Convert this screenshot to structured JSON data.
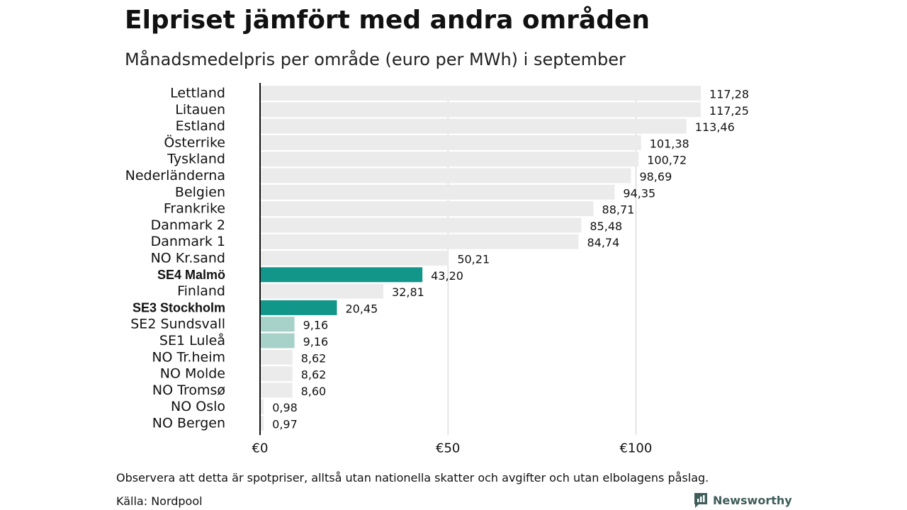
{
  "title": "Elpriset jämfört med andra områden",
  "subtitle": "Månadsmedelpris per område (euro per MWh) i september",
  "chart_data": {
    "type": "bar",
    "orientation": "horizontal",
    "categories": [
      "Lettland",
      "Litauen",
      "Estland",
      "Österrike",
      "Tyskland",
      "Nederländerna",
      "Belgien",
      "Frankrike",
      "Danmark  2",
      "Danmark  1",
      "NO Kr.sand",
      "SE4 Malmö",
      "Finland",
      "SE3 Stockholm",
      "SE2  Sundsvall",
      "SE1  Luleå",
      "NO Tr.heim",
      "NO Molde",
      "NO Tromsø",
      "NO Oslo",
      "NO Bergen"
    ],
    "values": [
      117.28,
      117.25,
      113.46,
      101.38,
      100.72,
      98.69,
      94.35,
      88.71,
      85.48,
      84.74,
      50.21,
      43.2,
      32.81,
      20.45,
      9.16,
      9.16,
      8.62,
      8.62,
      8.6,
      0.98,
      0.97
    ],
    "value_labels": [
      "117,28",
      "117,25",
      "113,46",
      "101,38",
      "100,72",
      "98,69",
      "94,35",
      "88,71",
      "85,48",
      "84,74",
      "50,21",
      "43,20",
      "32,81",
      "20,45",
      "9,16",
      "9,16",
      "8,62",
      "8,62",
      "8,60",
      "0,98",
      "0,97"
    ],
    "highlight": [
      "none",
      "none",
      "none",
      "none",
      "none",
      "none",
      "none",
      "none",
      "none",
      "none",
      "none",
      "strong",
      "none",
      "strong",
      "light",
      "light",
      "none",
      "none",
      "none",
      "none",
      "none"
    ],
    "bold_labels": [
      false,
      false,
      false,
      false,
      false,
      false,
      false,
      false,
      false,
      false,
      false,
      true,
      false,
      true,
      false,
      false,
      false,
      false,
      false,
      false,
      false
    ],
    "xlim": [
      0,
      125
    ],
    "xticks": [
      0,
      50,
      100
    ],
    "xtick_labels": [
      "€0",
      "€50",
      "€100"
    ],
    "grid": true,
    "colors": {
      "default": "#ebebeb",
      "strong": "#12968a",
      "light": "#a7d2ca",
      "zero_line": "#111111",
      "grid": "#cccccc"
    }
  },
  "footnote": "Observera att detta är spotpriser, alltså utan nationella skatter och avgifter och utan elbolagens påslag.",
  "source": "Källa: Nordpool",
  "brand": {
    "name": "Newsworthy",
    "icon": "newsworthy-logo-icon",
    "color": "#3f5d5a"
  }
}
